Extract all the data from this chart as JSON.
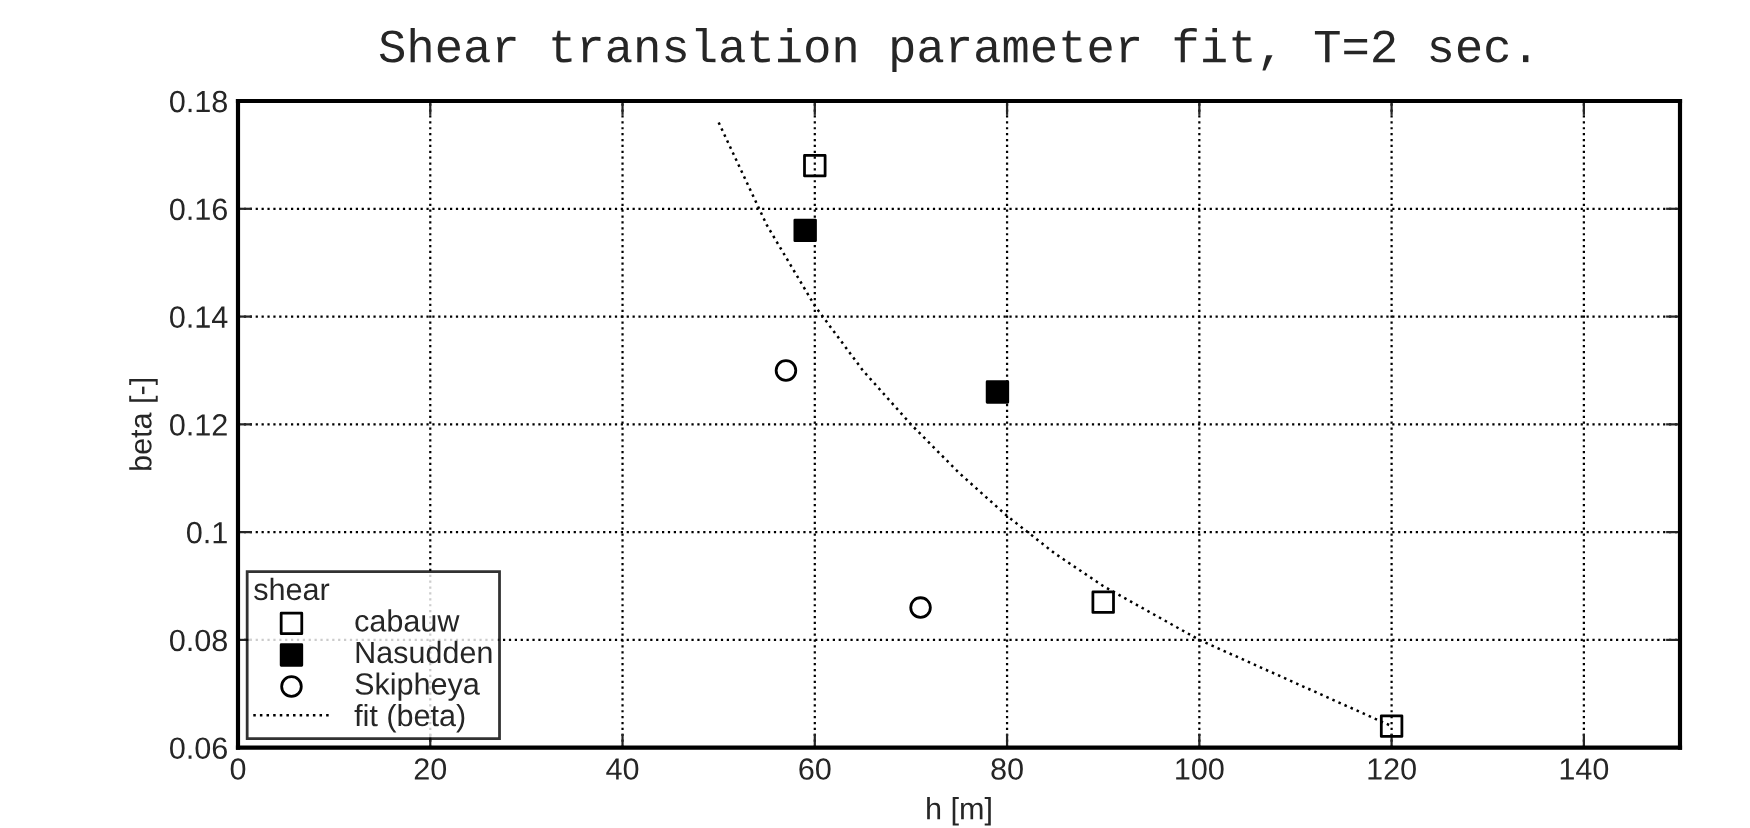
{
  "chart_data": {
    "type": "scatter",
    "title": "Shear translation parameter fit, T=2 sec.",
    "xlabel": "h [m]",
    "ylabel": "beta [-]",
    "legend_title": "shear",
    "series": [
      {
        "name": "cabauw",
        "color": "#000000",
        "marker": "square",
        "x": [
          60,
          90,
          120
        ],
        "values": [
          0.168,
          0.087,
          0.064
        ]
      },
      {
        "name": "Nasudden",
        "color": "#000000",
        "marker": "square",
        "x": [
          59,
          79
        ],
        "values": [
          0.156,
          0.126
        ]
      },
      {
        "name": "Skipheya",
        "color": "#000000",
        "marker": "circle",
        "x": [
          57,
          71
        ],
        "values": [
          0.13,
          0.086
        ]
      },
      {
        "name": "fit (beta)",
        "type": "line",
        "line_style": "dotted",
        "marker": "none",
        "color": "#000000",
        "x": [
          50,
          55,
          60,
          65,
          70,
          75,
          80,
          85,
          90,
          95,
          100,
          105,
          110,
          115,
          120
        ],
        "values": [
          0.176,
          0.157,
          0.142,
          0.13,
          0.12,
          0.111,
          0.103,
          0.096,
          0.09,
          0.085,
          0.08,
          0.076,
          0.072,
          0.068,
          0.064
        ]
      }
    ],
    "xlim": [
      0,
      150
    ],
    "xticks": [
      0,
      20,
      40,
      60,
      80,
      100,
      120,
      140
    ],
    "ylim": [
      0.06,
      0.18
    ],
    "yticks": [
      0.06,
      0.08,
      0.1,
      0.12,
      0.14,
      0.16,
      0.18
    ],
    "grid": true,
    "legend": "bottom left"
  }
}
